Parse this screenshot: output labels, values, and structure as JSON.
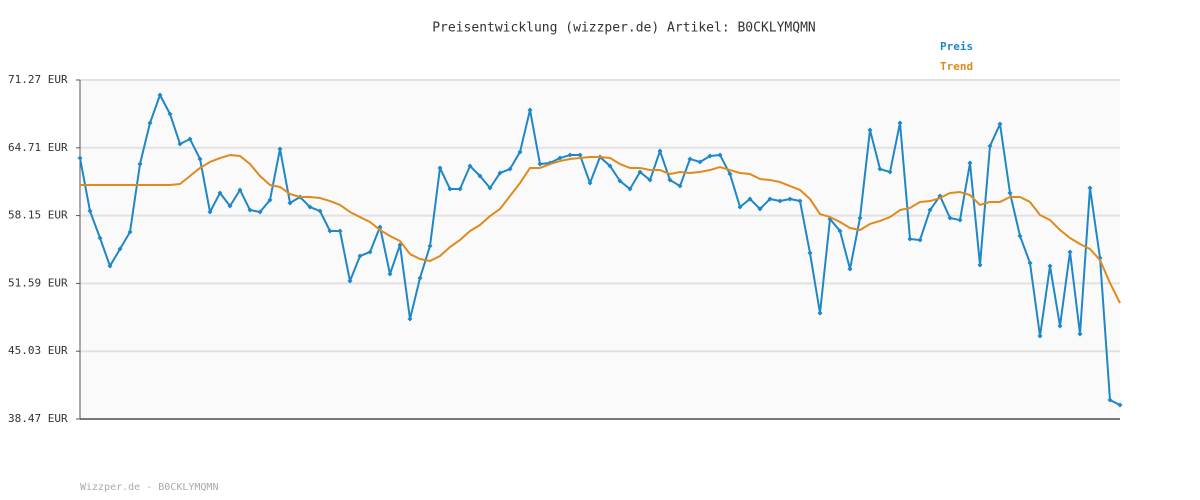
{
  "chart_data": {
    "type": "line",
    "title": "Preisentwicklung (wizzper.de) Artikel: B0CKLYMQMN",
    "ylim": [
      38.47,
      71.27
    ],
    "yticks": [
      {
        "value": 38.47,
        "label": "38.47 EUR"
      },
      {
        "value": 45.03,
        "label": "45.03 EUR"
      },
      {
        "value": 51.59,
        "label": "51.59 EUR"
      },
      {
        "value": 58.15,
        "label": "58.15 EUR"
      },
      {
        "value": 64.71,
        "label": "64.71 EUR"
      },
      {
        "value": 71.27,
        "label": "71.27 EUR"
      }
    ],
    "grid": true,
    "legend": "top-right",
    "series": [
      {
        "name": "Preis",
        "color": "#1f87c6",
        "markers": true,
        "values": [
          63.72,
          58.59,
          55.98,
          53.27,
          54.92,
          56.56,
          63.14,
          67.11,
          69.82,
          67.98,
          65.08,
          65.56,
          63.63,
          58.5,
          60.34,
          59.08,
          60.63,
          58.69,
          58.5,
          59.66,
          64.59,
          59.37,
          59.95,
          58.98,
          58.59,
          56.66,
          56.66,
          51.82,
          54.24,
          54.63,
          57.05,
          52.5,
          55.31,
          48.14,
          52.11,
          55.21,
          62.76,
          60.72,
          60.72,
          62.95,
          61.98,
          60.82,
          62.27,
          62.66,
          64.3,
          68.37,
          63.14,
          63.24,
          63.72,
          64.01,
          64.01,
          61.3,
          63.82,
          62.95,
          61.5,
          60.72,
          62.37,
          61.59,
          64.4,
          61.59,
          61.01,
          63.63,
          63.34,
          63.92,
          64.01,
          62.17,
          58.98,
          59.76,
          58.79,
          59.76,
          59.56,
          59.76,
          59.56,
          54.53,
          48.72,
          57.82,
          56.66,
          52.98,
          57.92,
          66.43,
          62.66,
          62.37,
          67.11,
          55.89,
          55.79,
          58.69,
          60.05,
          57.92,
          57.72,
          63.24,
          53.37,
          64.88,
          67.01,
          60.34,
          56.18,
          53.56,
          46.5,
          53.27,
          47.47,
          54.63,
          46.69,
          60.82,
          54.05,
          40.31,
          39.82
        ]
      },
      {
        "name": "Trend",
        "color": "#e08a1e",
        "markers": false,
        "values": [
          61.11,
          61.11,
          61.11,
          61.11,
          61.11,
          61.11,
          61.11,
          61.11,
          61.11,
          61.11,
          61.21,
          61.98,
          62.76,
          63.34,
          63.72,
          64.01,
          63.92,
          63.14,
          61.98,
          61.11,
          60.92,
          60.24,
          59.95,
          59.95,
          59.85,
          59.56,
          59.18,
          58.5,
          58.01,
          57.53,
          56.76,
          56.18,
          55.69,
          54.43,
          53.95,
          53.76,
          54.24,
          55.11,
          55.79,
          56.66,
          57.24,
          58.11,
          58.79,
          60.05,
          61.3,
          62.76,
          62.76,
          63.14,
          63.43,
          63.63,
          63.72,
          63.82,
          63.82,
          63.72,
          63.14,
          62.76,
          62.76,
          62.56,
          62.56,
          62.17,
          62.37,
          62.27,
          62.37,
          62.56,
          62.85,
          62.56,
          62.27,
          62.17,
          61.69,
          61.59,
          61.4,
          61.01,
          60.63,
          59.76,
          58.3,
          58.01,
          57.53,
          56.95,
          56.76,
          57.34,
          57.63,
          58.01,
          58.69,
          58.89,
          59.47,
          59.56,
          59.85,
          60.34,
          60.43,
          60.14,
          59.18,
          59.47,
          59.47,
          59.95,
          59.95,
          59.47,
          58.21,
          57.72,
          56.76,
          55.98,
          55.4,
          54.92,
          53.85,
          51.63,
          49.69
        ]
      }
    ]
  },
  "footer": "Wizzper.de - B0CKLYMQMN"
}
